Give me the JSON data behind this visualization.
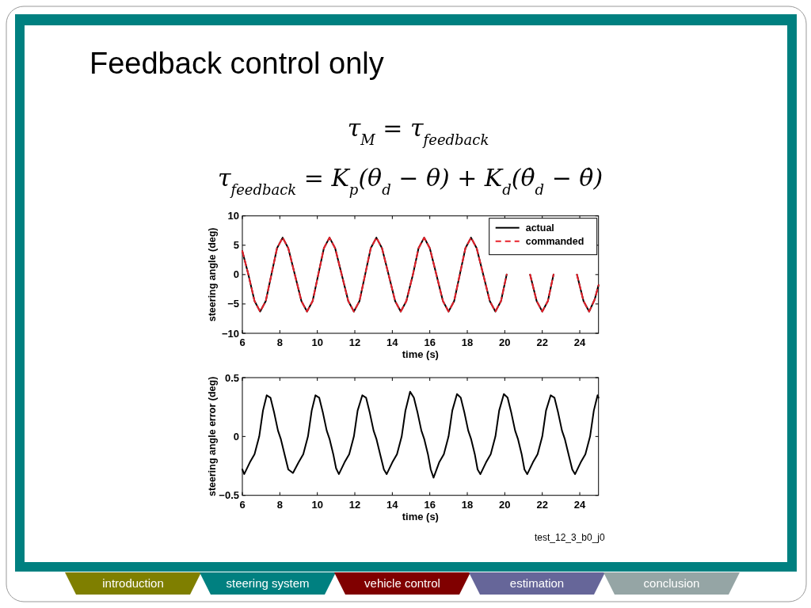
{
  "chart_data": [
    {
      "type": "other",
      "title": "Feedback control only",
      "annotations": [
        "τ$_{M}$ = τ$_{feedback}$",
        "τ$_{feedback}$ = K$_{p}$(θ$_{d}$ − θ) + K$_{d}$(θ̇$_{d}$ − θ̇)"
      ]
    },
    {
      "type": "line",
      "xlabel": "time (s)",
      "ylabel": "steering angle (deg)",
      "xlim": [
        6,
        25
      ],
      "ylim": [
        -10,
        10
      ],
      "xticks": [
        6,
        8,
        10,
        12,
        14,
        16,
        18,
        20,
        22,
        24
      ],
      "yticks": [
        {
          "value": -10,
          "label": "−10"
        },
        {
          "value": -5,
          "label": "−5"
        },
        0,
        5,
        10
      ],
      "grid": false,
      "legend": "top right",
      "x": [
        6,
        6.3,
        6.65,
        6.95,
        7.25,
        7.55,
        7.85,
        8.15,
        8.45,
        8.8,
        9.15,
        9.45,
        9.75,
        10.05,
        10.35,
        10.65,
        10.95,
        11.3,
        11.65,
        11.95,
        12.25,
        12.55,
        12.85,
        13.15,
        13.45,
        13.8,
        14.15,
        14.45,
        14.75,
        15.1,
        15.4,
        15.7,
        16.0,
        16.35,
        16.7,
        17.0,
        17.3,
        17.6,
        17.9,
        18.2,
        18.5,
        18.85,
        19.2,
        19.5,
        19.8,
        20.1,
        20.4,
        20.7,
        21.0,
        21.35,
        21.7,
        22.0,
        22.3,
        22.6,
        22.9,
        23.2,
        23.5,
        23.85,
        24.2,
        24.5,
        24.8,
        25
      ],
      "series": [
        {
          "name": "actual",
          "color": "#000000",
          "line_style": "solid",
          "values": [
            4.0,
            0.3,
            -4.5,
            -6.3,
            -4.5,
            0,
            4.5,
            6.3,
            4.5,
            0,
            -4.5,
            -6.3,
            -4.5,
            0,
            4.5,
            6.3,
            4.5,
            0,
            -4.5,
            -6.3,
            -4.5,
            0,
            4.5,
            6.3,
            4.5,
            0,
            -4.5,
            -6.3,
            -4.5,
            0,
            4.5,
            6.3,
            4.5,
            0,
            -4.5,
            -6.3,
            -4.5,
            0,
            4.5,
            6.3,
            4.5,
            0,
            -4.5,
            -6.3,
            -4.5,
            0,
            null,
            null,
            null,
            0,
            -4.5,
            -6.3,
            -4.5,
            0,
            null,
            null,
            null,
            0,
            -4.5,
            -6.3,
            -4.2,
            -1.8
          ]
        },
        {
          "name": "commanded",
          "color": "#e8202a",
          "line_style": "dashed",
          "values": [
            4.0,
            0.3,
            -4.5,
            -6.3,
            -4.5,
            0,
            4.5,
            6.3,
            4.5,
            0,
            -4.5,
            -6.3,
            -4.5,
            0,
            4.5,
            6.3,
            4.5,
            0,
            -4.5,
            -6.3,
            -4.5,
            0,
            4.5,
            6.3,
            4.5,
            0,
            -4.5,
            -6.3,
            -4.5,
            0,
            4.5,
            6.3,
            4.5,
            0,
            -4.5,
            -6.3,
            -4.5,
            0,
            4.5,
            6.3,
            4.5,
            0,
            -4.5,
            -6.3,
            -4.5,
            0,
            null,
            null,
            null,
            0,
            -4.5,
            -6.3,
            -4.5,
            0,
            null,
            null,
            null,
            0,
            -4.5,
            -6.3,
            -4.2,
            -1.8
          ]
        }
      ]
    },
    {
      "type": "line",
      "xlabel": "time (s)",
      "ylabel": "steering angle error (deg)",
      "xlim": [
        6,
        25
      ],
      "ylim": [
        -0.5,
        0.5
      ],
      "xticks": [
        6,
        8,
        10,
        12,
        14,
        16,
        18,
        20,
        22,
        24
      ],
      "yticks": [
        {
          "value": -0.5,
          "label": "−0.5"
        },
        0,
        0.5
      ],
      "grid": false,
      "annotations": [
        "test_12_3_b0_j0"
      ],
      "x": [
        6.0,
        6.1,
        6.4,
        6.65,
        6.9,
        7.1,
        7.3,
        7.5,
        7.7,
        7.9,
        8.05,
        8.25,
        8.45,
        8.7,
        9.0,
        9.25,
        9.5,
        9.7,
        9.9,
        10.1,
        10.3,
        10.5,
        10.65,
        10.85,
        11.0,
        11.15,
        11.45,
        11.7,
        11.95,
        12.15,
        12.4,
        12.6,
        12.8,
        13.0,
        13.15,
        13.35,
        13.55,
        13.7,
        14.0,
        14.25,
        14.5,
        14.7,
        14.95,
        15.15,
        15.35,
        15.55,
        15.7,
        15.9,
        16.05,
        16.2,
        16.5,
        16.75,
        17.0,
        17.2,
        17.45,
        17.65,
        17.85,
        18.05,
        18.2,
        18.4,
        18.55,
        18.7,
        19.0,
        19.25,
        19.5,
        19.7,
        19.95,
        20.15,
        20.35,
        20.55,
        20.7,
        20.9,
        21.05,
        21.2,
        21.5,
        21.75,
        22.0,
        22.2,
        22.45,
        22.65,
        22.85,
        23.05,
        23.2,
        23.4,
        23.6,
        23.75,
        24.05,
        24.3,
        24.55,
        24.75,
        24.95,
        25
      ],
      "series": [
        {
          "color": "#000000",
          "line_style": "solid",
          "values": [
            -0.28,
            -0.32,
            -0.22,
            -0.15,
            0.0,
            0.22,
            0.35,
            0.33,
            0.2,
            0.05,
            -0.02,
            -0.15,
            -0.28,
            -0.31,
            -0.22,
            -0.15,
            0.0,
            0.22,
            0.35,
            0.33,
            0.2,
            0.05,
            -0.02,
            -0.15,
            -0.27,
            -0.32,
            -0.22,
            -0.15,
            0.0,
            0.22,
            0.35,
            0.33,
            0.2,
            0.05,
            -0.02,
            -0.15,
            -0.28,
            -0.32,
            -0.22,
            -0.15,
            0.0,
            0.22,
            0.38,
            0.33,
            0.2,
            0.05,
            -0.02,
            -0.15,
            -0.28,
            -0.35,
            -0.22,
            -0.15,
            0.0,
            0.22,
            0.36,
            0.33,
            0.2,
            0.05,
            -0.02,
            -0.15,
            -0.28,
            -0.32,
            -0.22,
            -0.15,
            0.0,
            0.22,
            0.36,
            0.33,
            0.2,
            0.05,
            -0.02,
            -0.15,
            -0.28,
            -0.32,
            -0.22,
            -0.15,
            0.0,
            0.22,
            0.35,
            0.33,
            0.2,
            0.05,
            -0.02,
            -0.15,
            -0.28,
            -0.32,
            -0.22,
            -0.15,
            0.0,
            0.22,
            0.35,
            0.33
          ]
        }
      ]
    },
    {
      "type": "other",
      "annotations": [
        "introduction",
        "steering system",
        "vehicle control",
        "estimation",
        "conclusion"
      ],
      "colors": [
        "#7f7f00",
        "#008080",
        "#800000",
        "#666699",
        "#95a5a5"
      ]
    }
  ]
}
